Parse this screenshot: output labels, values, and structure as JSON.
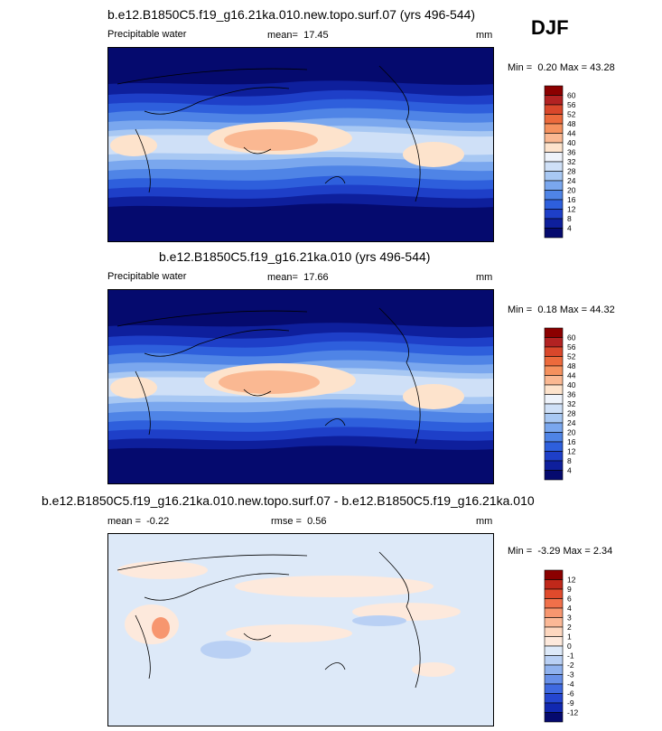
{
  "season": "DJF",
  "chart_data": [
    {
      "type": "heatmap",
      "title": "b.e12.B1850C5.f19_g16.21ka.010.new.topo.surf.07 (yrs 496-544)",
      "variable": "Precipitable water",
      "mean_label": "mean=",
      "mean": "17.45",
      "units": "mm",
      "min_label": "Min =",
      "min": "0.20",
      "max_label": "Max =",
      "max": "43.28",
      "levels": [
        "60",
        "56",
        "52",
        "48",
        "44",
        "40",
        "36",
        "32",
        "28",
        "24",
        "20",
        "16",
        "12",
        "8",
        "4"
      ],
      "colors": [
        "#8b0000",
        "#b22222",
        "#d9472b",
        "#ec6a3c",
        "#f5915e",
        "#fab892",
        "#fde3cc",
        "#eef3fb",
        "#cfe0f7",
        "#a8c8f3",
        "#7aa7ee",
        "#4f84e6",
        "#2e5fdc",
        "#1e3fc8",
        "#0e1f9c",
        "#050a6e"
      ],
      "axis_labels": [],
      "bg": "#050a6e"
    },
    {
      "type": "heatmap",
      "title": "b.e12.B1850C5.f19_g16.21ka.010 (yrs 496-544)",
      "variable": "Precipitable water",
      "mean_label": "mean=",
      "mean": "17.66",
      "units": "mm",
      "min_label": "Min =",
      "min": "0.18",
      "max_label": "Max =",
      "max": "44.32",
      "levels": [
        "60",
        "56",
        "52",
        "48",
        "44",
        "40",
        "36",
        "32",
        "28",
        "24",
        "20",
        "16",
        "12",
        "8",
        "4"
      ],
      "colors": [
        "#8b0000",
        "#b22222",
        "#d9472b",
        "#ec6a3c",
        "#f5915e",
        "#fab892",
        "#fde3cc",
        "#eef3fb",
        "#cfe0f7",
        "#a8c8f3",
        "#7aa7ee",
        "#4f84e6",
        "#2e5fdc",
        "#1e3fc8",
        "#0e1f9c",
        "#050a6e"
      ],
      "bg": "#050a6e"
    },
    {
      "type": "heatmap",
      "title": "b.e12.B1850C5.f19_g16.21ka.010.new.topo.surf.07 - b.e12.B1850C5.f19_g16.21ka.010",
      "mean_label": "mean =",
      "mean": "-0.22",
      "rmse_label": "rmse =",
      "rmse": "0.56",
      "units": "mm",
      "min_label": "Min =",
      "min": "-3.29",
      "max_label": "Max =",
      "max": "2.34",
      "levels": [
        "12",
        "9",
        "6",
        "4",
        "3",
        "2",
        "1",
        "0",
        "-1",
        "-2",
        "-3",
        "-4",
        "-6",
        "-9",
        "-12"
      ],
      "colors": [
        "#8b0000",
        "#c0281a",
        "#e04a2c",
        "#f0704a",
        "#f7966f",
        "#fbb896",
        "#fdd7bf",
        "#fde9dc",
        "#dde9f8",
        "#b9d0f4",
        "#90b2ee",
        "#6890e8",
        "#3f69e0",
        "#2546d0",
        "#1128b0",
        "#050a6e"
      ],
      "bg": "#dde9f8"
    }
  ]
}
